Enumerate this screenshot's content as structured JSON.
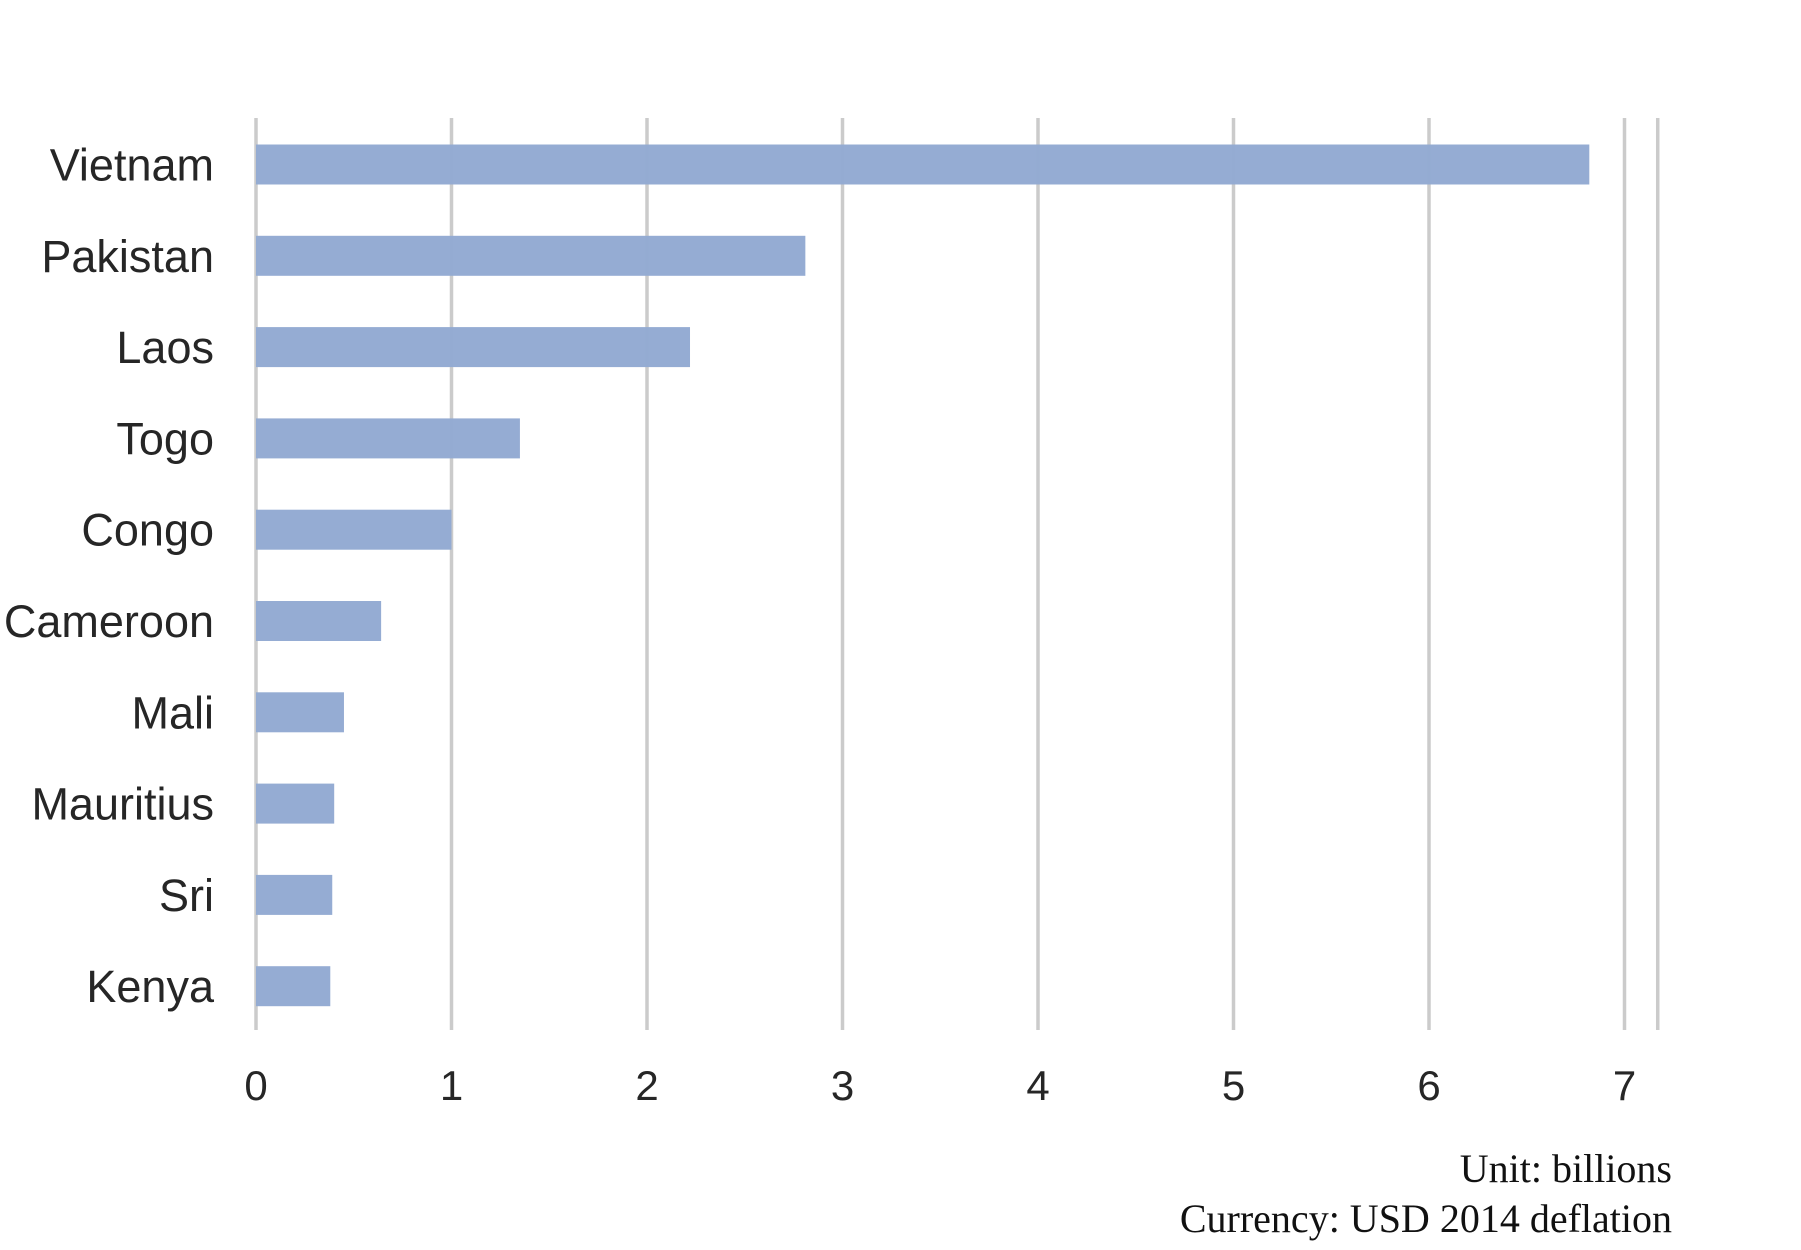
{
  "chart_data": {
    "type": "bar",
    "orientation": "horizontal",
    "categories": [
      "Vietnam",
      "Pakistan",
      "Laos",
      "Togo",
      "Congo",
      "Cameroon",
      "Mali",
      "Mauritius",
      "Sri",
      "Kenya"
    ],
    "values": [
      6.82,
      2.81,
      2.22,
      1.35,
      1.0,
      0.64,
      0.45,
      0.4,
      0.39,
      0.38
    ],
    "xlim": [
      0,
      7.17
    ],
    "xticks": [
      0,
      1,
      2,
      3,
      4,
      5,
      6,
      7
    ],
    "grid": true,
    "bar_color": "#93aad2",
    "grid_color": "#cbcbcb",
    "notes": [
      "Unit: billions",
      "Currency: USD 2014 deflation"
    ]
  }
}
